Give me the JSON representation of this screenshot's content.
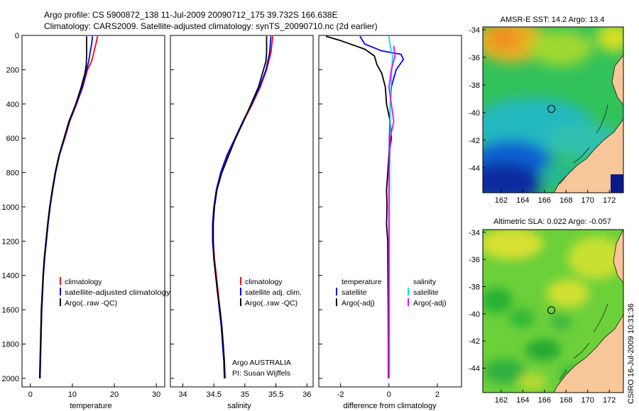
{
  "header": {
    "line1": "Argo profile: CS 5900872_138 11-Jul-2009 20090712_175 39.732S 166.638E",
    "line2": "Climatology: CARS2009. Satellite-adjusted climatology: synTS_20090710.nc (2d earlier)"
  },
  "side_label": "CSIRO 16-Jul-2009 10:31:36",
  "colors": {
    "climatology": "#ff0000",
    "satellite": "#0000ff",
    "argo": "#000000",
    "salinity_satellite": "#00e5e5",
    "salinity_argo": "#ff00ff",
    "land": "#f7c79a"
  },
  "chart_data": [
    {
      "type": "line",
      "id": "temperature",
      "xlabel": "temperature",
      "ylabel": "",
      "xlim": [
        -2,
        32
      ],
      "ylim": [
        2050,
        0
      ],
      "x_ticks": [
        0,
        10,
        20,
        30
      ],
      "y_ticks": [
        0,
        200,
        400,
        600,
        800,
        1000,
        1200,
        1400,
        1600,
        1800,
        2000
      ],
      "legend": [
        "climatology",
        "satellite-adjusted climatology",
        "Argo(..raw -QC)"
      ],
      "legend_placement": "lower-right",
      "series": [
        {
          "name": "climatology",
          "color": "#ff0000",
          "points": [
            [
              16.0,
              5
            ],
            [
              15.6,
              50
            ],
            [
              15.1,
              100
            ],
            [
              14.6,
              150
            ],
            [
              13.6,
              200
            ],
            [
              12.5,
              300
            ],
            [
              11.0,
              400
            ],
            [
              9.4,
              500
            ],
            [
              8.2,
              600
            ],
            [
              6.9,
              700
            ],
            [
              6.0,
              800
            ],
            [
              5.3,
              900
            ],
            [
              4.7,
              1000
            ],
            [
              4.2,
              1100
            ],
            [
              3.8,
              1200
            ],
            [
              3.4,
              1300
            ],
            [
              3.1,
              1400
            ],
            [
              2.9,
              1500
            ],
            [
              2.7,
              1600
            ],
            [
              2.6,
              1700
            ],
            [
              2.5,
              1800
            ],
            [
              2.4,
              1900
            ],
            [
              2.3,
              2000
            ]
          ]
        },
        {
          "name": "satellite-adjusted climatology",
          "color": "#0000ff",
          "points": [
            [
              14.8,
              5
            ],
            [
              14.6,
              50
            ],
            [
              14.2,
              100
            ],
            [
              13.9,
              150
            ],
            [
              13.4,
              200
            ],
            [
              12.4,
              300
            ],
            [
              10.9,
              400
            ],
            [
              9.3,
              500
            ],
            [
              8.1,
              600
            ],
            [
              6.9,
              700
            ],
            [
              6.0,
              800
            ],
            [
              5.3,
              900
            ],
            [
              4.7,
              1000
            ],
            [
              4.2,
              1100
            ],
            [
              3.8,
              1200
            ],
            [
              3.4,
              1300
            ],
            [
              3.1,
              1400
            ],
            [
              2.9,
              1500
            ],
            [
              2.7,
              1600
            ],
            [
              2.6,
              1700
            ],
            [
              2.5,
              1800
            ],
            [
              2.4,
              1900
            ],
            [
              2.3,
              2000
            ]
          ]
        },
        {
          "name": "Argo(..raw -QC)",
          "color": "#000000",
          "points": [
            [
              13.4,
              5
            ],
            [
              13.4,
              60
            ],
            [
              13.4,
              120
            ],
            [
              13.3,
              170
            ],
            [
              13.0,
              220
            ],
            [
              12.1,
              300
            ],
            [
              10.8,
              400
            ],
            [
              9.2,
              500
            ],
            [
              8.0,
              600
            ],
            [
              6.8,
              700
            ],
            [
              5.9,
              800
            ],
            [
              5.2,
              900
            ],
            [
              4.6,
              1000
            ],
            [
              4.1,
              1100
            ],
            [
              3.7,
              1200
            ],
            [
              3.3,
              1300
            ],
            [
              3.0,
              1400
            ],
            [
              2.8,
              1500
            ],
            [
              2.6,
              1600
            ],
            [
              2.5,
              1700
            ],
            [
              2.4,
              1800
            ],
            [
              2.3,
              1900
            ],
            [
              2.2,
              2000
            ]
          ]
        }
      ]
    },
    {
      "type": "line",
      "id": "salinity",
      "xlabel": "salinity",
      "ylabel": "",
      "xlim": [
        33.8,
        36.1
      ],
      "ylim": [
        2050,
        0
      ],
      "x_ticks": [
        34,
        34.5,
        35,
        35.5,
        36
      ],
      "legend": [
        "climatology",
        "satellite adj. clim.",
        "Argo(..raw -QC)"
      ],
      "legend_placement": "lower-right",
      "annotation": [
        "Argo AUSTRALIA",
        "PI: Susan Wijffels"
      ],
      "series": [
        {
          "name": "climatology",
          "color": "#ff0000",
          "points": [
            [
              35.45,
              5
            ],
            [
              35.42,
              100
            ],
            [
              35.35,
              200
            ],
            [
              35.25,
              300
            ],
            [
              35.12,
              400
            ],
            [
              34.98,
              500
            ],
            [
              34.85,
              600
            ],
            [
              34.72,
              700
            ],
            [
              34.62,
              800
            ],
            [
              34.55,
              900
            ],
            [
              34.51,
              1000
            ],
            [
              34.49,
              1100
            ],
            [
              34.49,
              1200
            ],
            [
              34.51,
              1300
            ],
            [
              34.54,
              1400
            ],
            [
              34.57,
              1500
            ],
            [
              34.6,
              1600
            ],
            [
              34.63,
              1700
            ],
            [
              34.65,
              1800
            ],
            [
              34.67,
              1900
            ],
            [
              34.68,
              2000
            ]
          ]
        },
        {
          "name": "satellite adj. clim.",
          "color": "#0000ff",
          "points": [
            [
              35.42,
              5
            ],
            [
              35.4,
              100
            ],
            [
              35.34,
              200
            ],
            [
              35.24,
              300
            ],
            [
              35.11,
              400
            ],
            [
              34.97,
              500
            ],
            [
              34.84,
              600
            ],
            [
              34.71,
              700
            ],
            [
              34.61,
              800
            ],
            [
              34.54,
              900
            ],
            [
              34.5,
              1000
            ],
            [
              34.48,
              1100
            ],
            [
              34.48,
              1200
            ],
            [
              34.5,
              1300
            ],
            [
              34.53,
              1400
            ],
            [
              34.56,
              1500
            ],
            [
              34.59,
              1600
            ],
            [
              34.62,
              1700
            ],
            [
              34.64,
              1800
            ],
            [
              34.66,
              1900
            ],
            [
              34.67,
              2000
            ]
          ]
        },
        {
          "name": "Argo(..raw -QC)",
          "color": "#000000",
          "points": [
            [
              35.35,
              5
            ],
            [
              35.35,
              100
            ],
            [
              35.34,
              150
            ],
            [
              35.3,
              200
            ],
            [
              35.22,
              300
            ],
            [
              35.1,
              400
            ],
            [
              34.98,
              500
            ],
            [
              34.85,
              600
            ],
            [
              34.74,
              700
            ],
            [
              34.63,
              800
            ],
            [
              34.55,
              900
            ],
            [
              34.51,
              1000
            ],
            [
              34.49,
              1100
            ],
            [
              34.49,
              1200
            ],
            [
              34.5,
              1300
            ],
            [
              34.53,
              1400
            ],
            [
              34.56,
              1500
            ],
            [
              34.6,
              1600
            ],
            [
              34.63,
              1700
            ],
            [
              34.65,
              1800
            ],
            [
              34.67,
              1900
            ],
            [
              34.68,
              2000
            ]
          ]
        }
      ]
    },
    {
      "type": "line",
      "id": "difference",
      "xlabel": "difference from climatology",
      "ylabel": "",
      "xlim": [
        -2.9,
        3.0
      ],
      "ylim": [
        2050,
        0
      ],
      "x_ticks": [
        -2,
        0,
        2
      ],
      "legend_groups": [
        {
          "title": "temperature",
          "entries": [
            "satellite",
            "Argo(-adj)"
          ]
        },
        {
          "title": "salinity",
          "entries": [
            "satellite",
            "Argo(-adj)"
          ]
        }
      ],
      "legend_placement": "lower-center",
      "series": [
        {
          "name": "temperature satellite",
          "color": "#0000ff",
          "points": [
            [
              -1.2,
              5
            ],
            [
              -1.0,
              50
            ],
            [
              -0.3,
              90
            ],
            [
              0.5,
              110
            ],
            [
              0.6,
              140
            ],
            [
              0.3,
              200
            ],
            [
              0.1,
              300
            ],
            [
              0.05,
              400
            ],
            [
              0.02,
              600
            ],
            [
              0.0,
              800
            ],
            [
              0.0,
              1000
            ],
            [
              0.0,
              1200
            ],
            [
              0.0,
              1400
            ],
            [
              0.0,
              1600
            ],
            [
              0.0,
              1800
            ],
            [
              0.0,
              2000
            ]
          ]
        },
        {
          "name": "temperature Argo(-adj)",
          "color": "#000000",
          "points": [
            [
              -2.6,
              5
            ],
            [
              -2.0,
              30
            ],
            [
              -1.0,
              80
            ],
            [
              -0.6,
              120
            ],
            [
              -0.5,
              170
            ],
            [
              -0.3,
              220
            ],
            [
              -0.15,
              300
            ],
            [
              -0.1,
              400
            ],
            [
              0.05,
              500
            ],
            [
              0.1,
              600
            ],
            [
              0.0,
              700
            ],
            [
              -0.05,
              800
            ],
            [
              -0.1,
              900
            ],
            [
              -0.08,
              1000
            ],
            [
              -0.1,
              1100
            ],
            [
              -0.05,
              1200
            ],
            [
              -0.04,
              1400
            ],
            [
              -0.03,
              1600
            ],
            [
              -0.02,
              1800
            ],
            [
              -0.02,
              2000
            ]
          ]
        },
        {
          "name": "salinity satellite",
          "color": "#00e5e5",
          "points": [
            [
              0.0,
              5
            ],
            [
              0.05,
              60
            ],
            [
              0.15,
              120
            ],
            [
              0.1,
              250
            ],
            [
              0.05,
              400
            ],
            [
              0.05,
              600
            ],
            [
              0.03,
              800
            ],
            [
              0.02,
              1000
            ],
            [
              0.02,
              1200
            ],
            [
              0.02,
              1400
            ],
            [
              0.02,
              1600
            ],
            [
              0.02,
              1800
            ],
            [
              0.02,
              2000
            ]
          ]
        },
        {
          "name": "salinity Argo(-adj)",
          "color": "#ff00ff",
          "points": [
            [
              0.2,
              60
            ],
            [
              0.25,
              120
            ],
            [
              0.1,
              200
            ],
            [
              0.0,
              300
            ],
            [
              0.1,
              400
            ],
            [
              0.2,
              500
            ],
            [
              0.05,
              600
            ],
            [
              0.0,
              800
            ],
            [
              0.0,
              1000
            ],
            [
              0.0,
              1400
            ],
            [
              0.0,
              2000
            ]
          ]
        }
      ]
    },
    {
      "type": "heatmap",
      "id": "sst-map",
      "title": "AMSR-E SST: 14.2 Argo: 13.4",
      "xlim": [
        160.3,
        173.3
      ],
      "ylim": [
        -45.8,
        -33.8
      ],
      "x_ticks": [
        162,
        164,
        166,
        168,
        170,
        172
      ],
      "y_ticks": [
        -34,
        -36,
        -38,
        -40,
        -42,
        -44
      ],
      "marker": [
        166.638,
        -39.732
      ],
      "color_regions": [
        {
          "label": "warm",
          "color": "#f0a020"
        },
        {
          "label": "moderate",
          "color": "#30c060"
        },
        {
          "label": "cool",
          "color": "#10a0e0"
        },
        {
          "label": "cold",
          "color": "#0020a0"
        }
      ]
    },
    {
      "type": "heatmap",
      "id": "sla-map",
      "title": "Altimetric SLA: 0.022 Argo: -0.057",
      "xlim": [
        160.3,
        173.3
      ],
      "ylim": [
        -45.8,
        -33.8
      ],
      "x_ticks": [
        162,
        164,
        166,
        168,
        170,
        172
      ],
      "y_ticks": [
        -34,
        -36,
        -38,
        -40,
        -42,
        -44
      ],
      "marker": [
        166.638,
        -39.732
      ]
    }
  ]
}
